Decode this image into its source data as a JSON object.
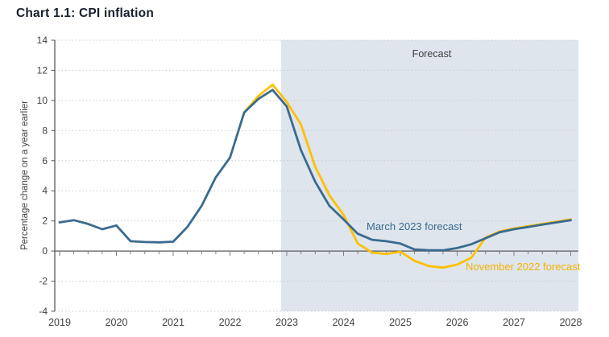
{
  "title": "Chart 1.1: CPI inflation",
  "chart_data": {
    "type": "line",
    "title": "Chart 1.1: CPI inflation",
    "xlabel": "",
    "ylabel": "Percentage change on a year earlier",
    "ylim": [
      -4,
      14
    ],
    "yticks": [
      14,
      12,
      10,
      8,
      6,
      4,
      2,
      0,
      -2,
      -4
    ],
    "xticks": [
      2019,
      2020,
      2021,
      2022,
      2023,
      2024,
      2025,
      2026,
      2027,
      2028
    ],
    "x_unit": "quarterly",
    "grid": "horizontal-dotted",
    "legend_position": "inline-annotations",
    "forecast_region": {
      "label": "Forecast",
      "start": 2022.9,
      "end": 2028.25,
      "fill": "#dee5ed"
    },
    "series": [
      {
        "name": "November 2022 forecast",
        "color": "#ffc000",
        "x_start": 2022.25,
        "x_step": 0.25,
        "values": [
          9.2,
          10.3,
          11.05,
          9.9,
          8.4,
          5.6,
          3.7,
          2.4,
          0.5,
          -0.1,
          -0.2,
          -0.05,
          -0.65,
          -1.0,
          -1.1,
          -0.9,
          -0.45,
          0.9,
          1.3,
          1.5,
          1.65,
          1.8,
          1.95,
          2.1
        ]
      },
      {
        "name": "March 2023 forecast",
        "color": "#3a6b8e",
        "x_start": 2019.0,
        "x_step": 0.25,
        "values": [
          1.9,
          2.05,
          1.8,
          1.45,
          1.7,
          0.65,
          0.6,
          0.58,
          0.62,
          1.6,
          3.0,
          4.9,
          6.2,
          9.2,
          10.1,
          10.7,
          9.6,
          6.7,
          4.6,
          3.0,
          2.1,
          1.15,
          0.75,
          0.65,
          0.5,
          0.1,
          0.05,
          0.05,
          0.2,
          0.45,
          0.85,
          1.25,
          1.45,
          1.6,
          1.75,
          1.9,
          2.05
        ]
      }
    ]
  }
}
